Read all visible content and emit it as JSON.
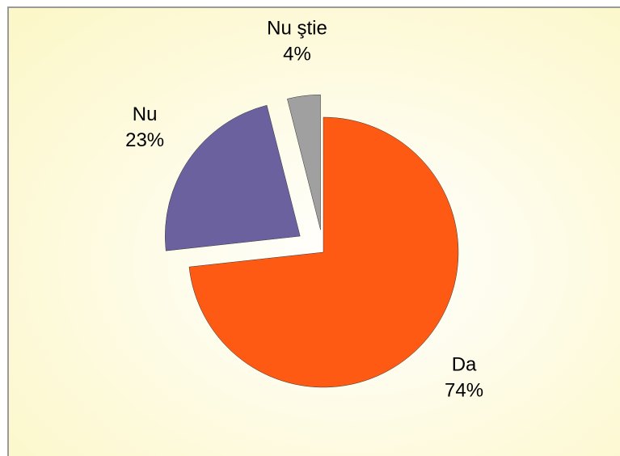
{
  "chart_data": {
    "type": "pie",
    "categories": [
      "Da",
      "Nu",
      "Nu ştie"
    ],
    "values": [
      74,
      23,
      4
    ],
    "value_labels": [
      "74%",
      "23%",
      "4%"
    ],
    "colors": [
      "#ff5a14",
      "#6b619e",
      "#a0a0a0"
    ]
  }
}
